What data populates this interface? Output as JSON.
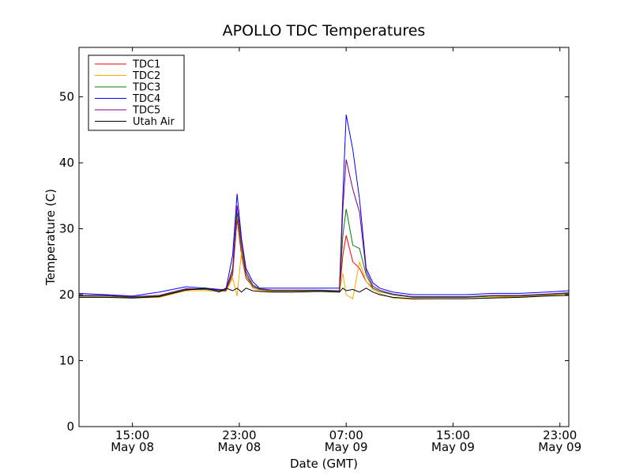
{
  "chart_data": {
    "type": "line",
    "title": "APOLLO TDC Temperatures",
    "xlabel": "Date (GMT)",
    "ylabel": "Temperature (C)",
    "xlim": [
      "2014-05-08T11:00",
      "2014-05-09T23:40"
    ],
    "ylim": [
      0,
      57.5
    ],
    "grid": false,
    "legend_position": "top-left",
    "y_ticks": [
      0,
      10,
      20,
      30,
      40,
      50
    ],
    "x_ticks": [
      {
        "t": "2014-05-08T15:00",
        "time": "15:00",
        "date": "May 08"
      },
      {
        "t": "2014-05-08T23:00",
        "time": "23:00",
        "date": "May 08"
      },
      {
        "t": "2014-05-09T07:00",
        "time": "07:00",
        "date": "May 09"
      },
      {
        "t": "2014-05-09T15:00",
        "time": "15:00",
        "date": "May 09"
      },
      {
        "t": "2014-05-09T23:00",
        "time": "23:00",
        "date": "May 09"
      }
    ],
    "x": [
      "2014-05-08T11:00",
      "2014-05-08T13:00",
      "2014-05-08T15:00",
      "2014-05-08T17:00",
      "2014-05-08T19:00",
      "2014-05-08T20:30",
      "2014-05-08T21:30",
      "2014-05-08T22:00",
      "2014-05-08T22:30",
      "2014-05-08T22:50",
      "2014-05-08T23:10",
      "2014-05-08T23:30",
      "2014-05-09T00:00",
      "2014-05-09T00:30",
      "2014-05-09T01:30",
      "2014-05-09T03:00",
      "2014-05-09T05:00",
      "2014-05-09T06:30",
      "2014-05-09T06:45",
      "2014-05-09T07:00",
      "2014-05-09T07:30",
      "2014-05-09T08:00",
      "2014-05-09T08:30",
      "2014-05-09T09:00",
      "2014-05-09T09:30",
      "2014-05-09T10:30",
      "2014-05-09T12:00",
      "2014-05-09T14:00",
      "2014-05-09T16:00",
      "2014-05-09T18:00",
      "2014-05-09T20:00",
      "2014-05-09T22:00",
      "2014-05-09T23:40"
    ],
    "series": [
      {
        "name": "TDC1",
        "color": "#ff0000",
        "values": [
          19.8,
          19.8,
          19.6,
          19.8,
          20.8,
          20.8,
          20.6,
          20.6,
          23.0,
          31.5,
          26.0,
          22.5,
          21.2,
          20.8,
          20.6,
          20.6,
          20.6,
          20.5,
          26.0,
          29.0,
          25.0,
          24.0,
          22.0,
          21.0,
          20.5,
          20.0,
          19.6,
          19.6,
          19.6,
          19.8,
          19.8,
          20.0,
          20.2
        ]
      },
      {
        "name": "TDC2",
        "color": "#ffa500",
        "values": [
          19.6,
          19.6,
          19.5,
          19.6,
          20.6,
          20.6,
          20.5,
          20.5,
          22.5,
          19.8,
          26.5,
          23.0,
          21.0,
          20.6,
          20.5,
          20.5,
          20.5,
          20.4,
          23.2,
          20.0,
          19.4,
          25.0,
          22.0,
          20.8,
          20.2,
          19.5,
          19.3,
          19.4,
          19.4,
          19.6,
          19.7,
          19.9,
          20.1
        ]
      },
      {
        "name": "TDC3",
        "color": "#008000",
        "values": [
          19.8,
          19.8,
          19.6,
          19.8,
          20.8,
          20.8,
          20.6,
          20.6,
          23.5,
          32.5,
          27.0,
          23.0,
          21.3,
          20.8,
          20.6,
          20.6,
          20.6,
          20.5,
          29.0,
          33.0,
          27.5,
          27.0,
          23.0,
          21.0,
          20.5,
          20.0,
          19.6,
          19.6,
          19.6,
          19.8,
          19.8,
          20.0,
          20.2
        ]
      },
      {
        "name": "TDC4",
        "color": "#0000ff",
        "values": [
          20.2,
          20.0,
          19.8,
          20.4,
          21.2,
          21.0,
          20.8,
          20.8,
          26.0,
          35.3,
          28.5,
          24.0,
          22.0,
          21.0,
          21.0,
          21.0,
          21.0,
          21.0,
          35.0,
          47.3,
          42.0,
          34.5,
          24.0,
          21.8,
          21.0,
          20.4,
          20.0,
          20.0,
          20.0,
          20.2,
          20.2,
          20.4,
          20.6
        ]
      },
      {
        "name": "TDC5",
        "color": "#800080",
        "values": [
          19.9,
          19.9,
          19.7,
          19.9,
          20.9,
          20.9,
          20.7,
          20.7,
          24.0,
          33.5,
          28.0,
          23.5,
          21.5,
          20.9,
          20.7,
          20.7,
          20.7,
          20.6,
          33.0,
          40.5,
          36.0,
          32.5,
          23.5,
          21.3,
          20.7,
          20.1,
          19.7,
          19.7,
          19.7,
          19.9,
          19.9,
          20.1,
          20.3
        ]
      },
      {
        "name": "Utah Air",
        "color": "#000000",
        "values": [
          19.6,
          19.6,
          19.5,
          19.7,
          20.7,
          21.0,
          20.4,
          21.0,
          20.6,
          21.0,
          20.4,
          21.0,
          20.6,
          20.5,
          20.4,
          20.4,
          20.5,
          20.4,
          21.0,
          20.6,
          20.8,
          20.4,
          21.0,
          20.4,
          20.0,
          19.6,
          19.4,
          19.4,
          19.4,
          19.5,
          19.6,
          19.8,
          19.9
        ]
      }
    ]
  }
}
